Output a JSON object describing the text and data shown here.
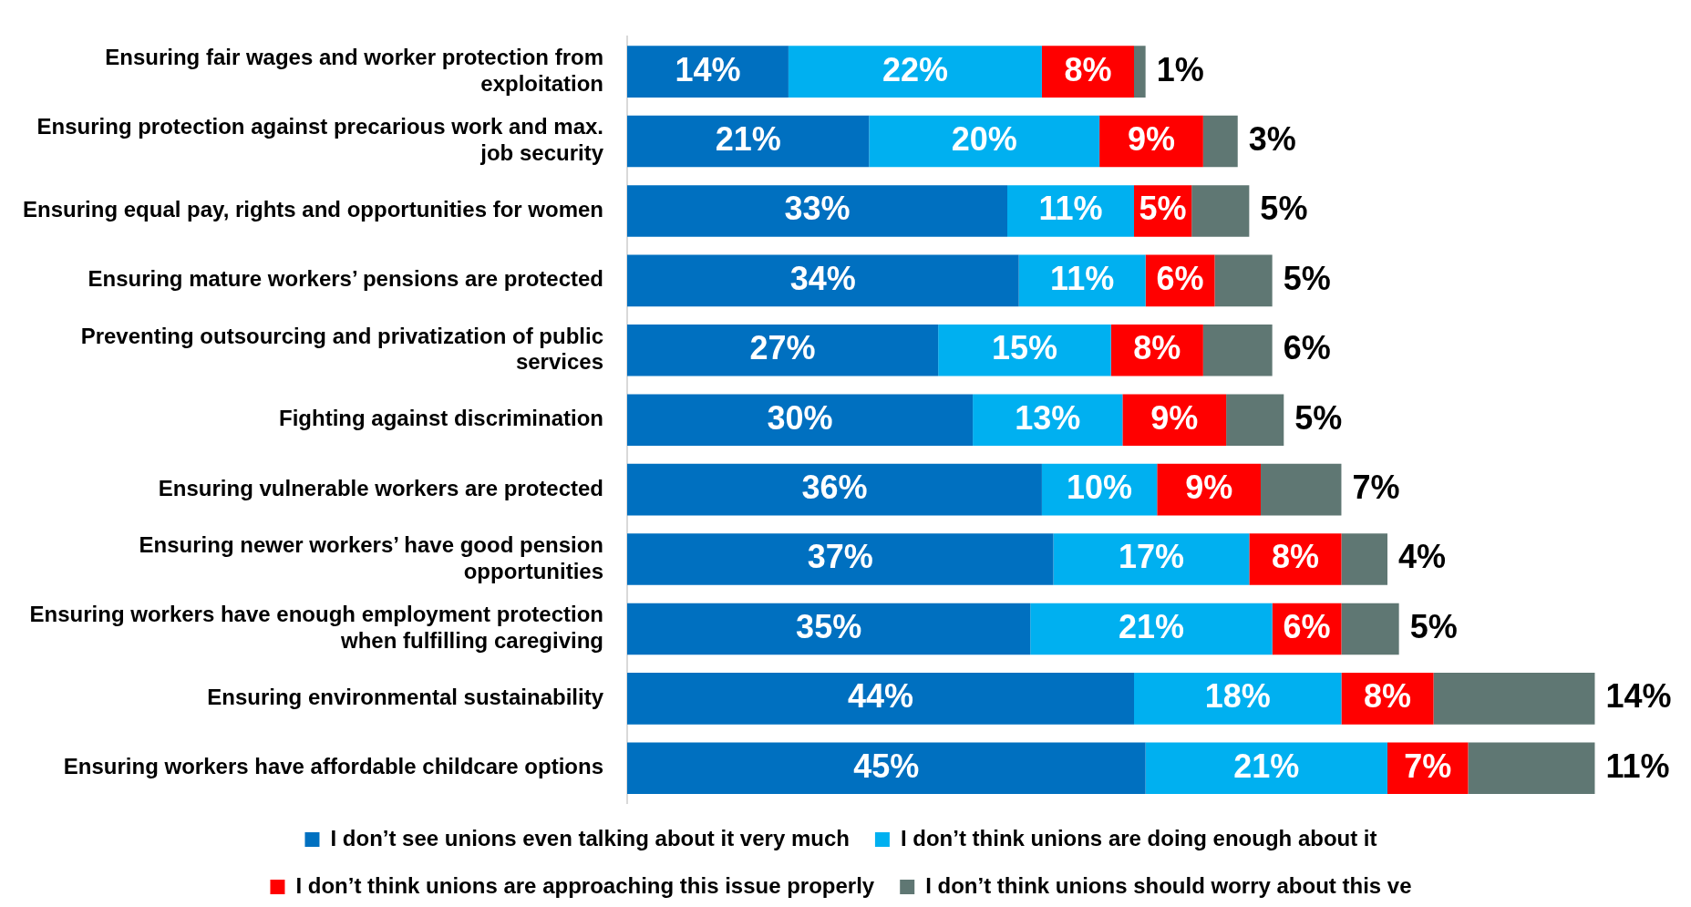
{
  "chart_data": {
    "type": "bar",
    "orientation": "horizontal",
    "stacked": true,
    "data_labels": true,
    "legend": "bottom",
    "grid": false,
    "tick_labels": "y",
    "categories": [
      "Ensuring fair wages and worker protection from exploitation",
      "Ensuring protection against precarious work and max. job security",
      "Ensuring equal pay, rights and opportunities for women",
      "Ensuring mature workers’ pensions are protected",
      "Preventing outsourcing and privatization of public services",
      "Fighting against discrimination",
      "Ensuring vulnerable workers are protected",
      "Ensuring newer workers’ have good pension opportunities",
      "Ensuring workers have enough employment protection when fulfilling caregiving",
      "Ensuring environmental sustainability",
      "Ensuring workers have affordable childcare options"
    ],
    "series": [
      {
        "name": "I don’t see unions even talking about it very much",
        "color": "#0070c0",
        "values": [
          14,
          21,
          33,
          34,
          27,
          30,
          36,
          37,
          35,
          44,
          45
        ],
        "value_labels": [
          "14%",
          "21%",
          "33%",
          "34%",
          "27%",
          "30%",
          "36%",
          "37%",
          "35%",
          "44%",
          "45%"
        ]
      },
      {
        "name": "I don’t think unions are doing enough about it",
        "color": "#00b0f0",
        "values": [
          22,
          20,
          11,
          11,
          15,
          13,
          10,
          17,
          21,
          18,
          21
        ],
        "value_labels": [
          "22%",
          "20%",
          "11%",
          "11%",
          "15%",
          "13%",
          "10%",
          "17%",
          "21%",
          "18%",
          "21%"
        ]
      },
      {
        "name": "I don’t think unions are approaching this issue properly",
        "color": "#ff0000",
        "values": [
          8,
          9,
          5,
          6,
          8,
          9,
          9,
          8,
          6,
          8,
          7
        ],
        "value_labels": [
          "8%",
          "9%",
          "5%",
          "6%",
          "8%",
          "9%",
          "9%",
          "8%",
          "6%",
          "8%",
          "7%"
        ]
      },
      {
        "name": "I don’t think unions should worry about this ve",
        "color": "#5f7773",
        "values": [
          1,
          3,
          5,
          5,
          6,
          5,
          7,
          4,
          5,
          14,
          11
        ],
        "value_labels": [
          "1%",
          "3%",
          "5%",
          "5%",
          "6%",
          "5%",
          "7%",
          "4%",
          "5%",
          "14%",
          "11%"
        ]
      }
    ]
  }
}
